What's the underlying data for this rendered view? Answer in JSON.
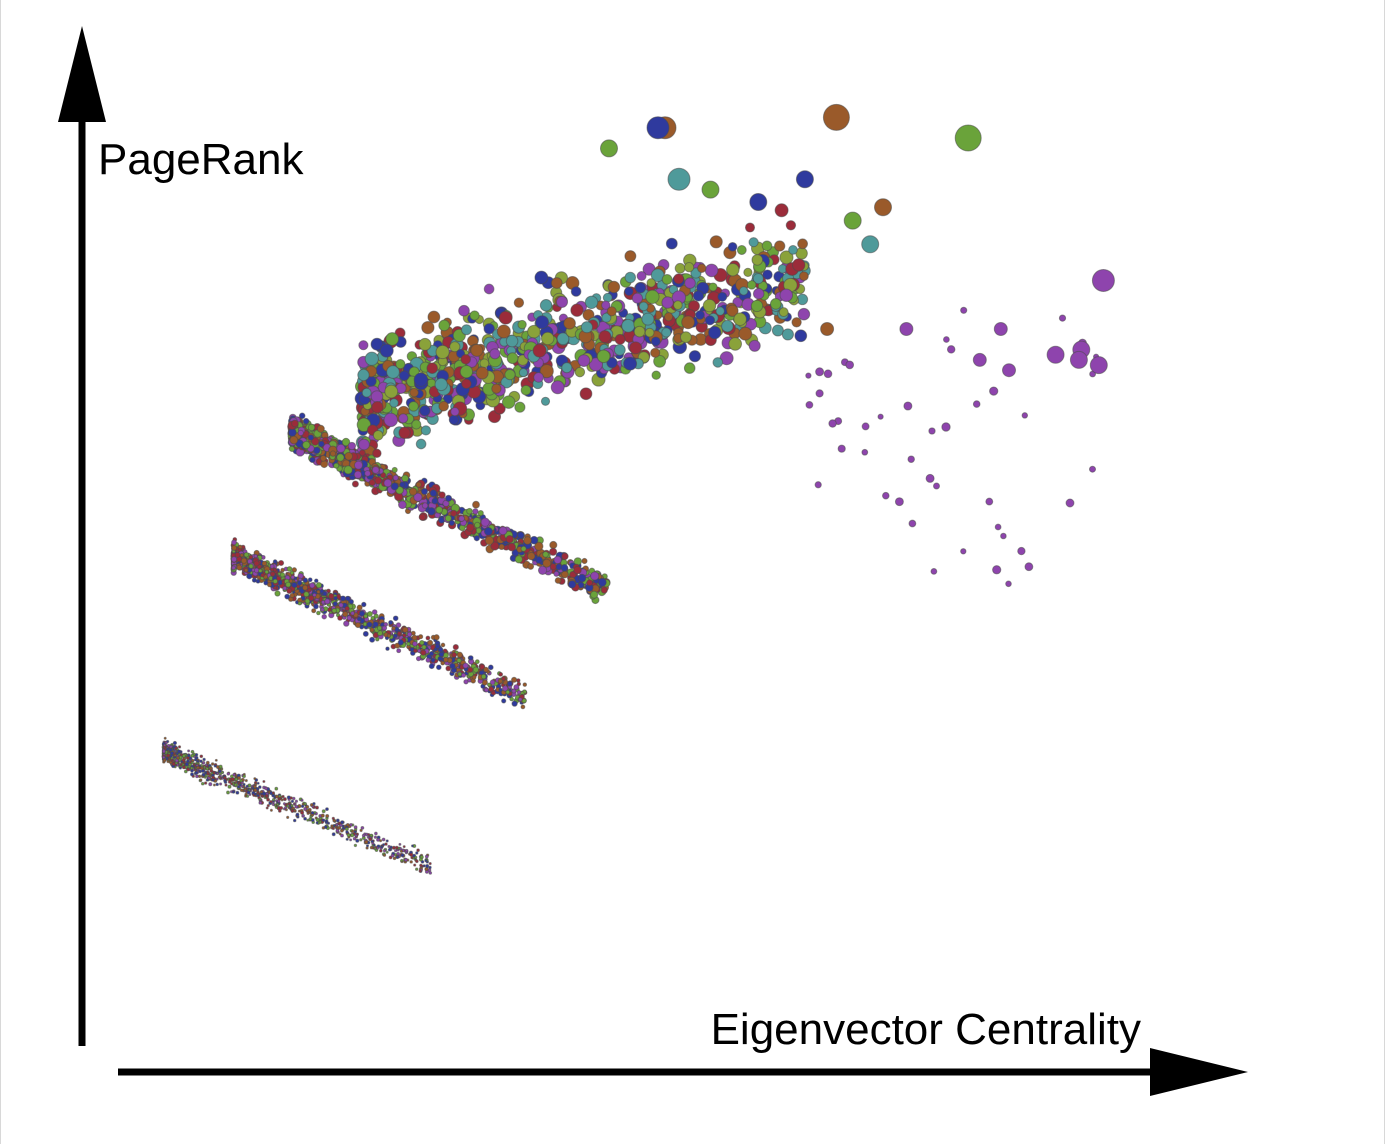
{
  "chart_data": {
    "type": "scatter",
    "title": "",
    "xlabel": "Eigenvector Centrality",
    "ylabel": "PageRank",
    "xlim": [
      0,
      1
    ],
    "ylim": [
      0,
      1
    ],
    "grid": false,
    "legend": "none",
    "axis_ticks": "none",
    "colors": {
      "purple": "#8e44ad",
      "blue": "#2f3a9e",
      "red": "#9b2c3a",
      "green": "#6aa33a",
      "teal": "#4f9a9a",
      "brown": "#9a5a2a",
      "olive": "#8aa23a"
    },
    "clusters": [
      {
        "shape": "cloud",
        "size": "large",
        "count": 900,
        "x_range": [
          0.24,
          0.62
        ],
        "y_range": [
          0.55,
          0.82
        ],
        "colors": [
          "blue",
          "red",
          "green",
          "teal",
          "brown",
          "purple",
          "olive"
        ]
      },
      {
        "shape": "band",
        "size": "medium",
        "count": 1100,
        "x_range": [
          0.18,
          0.45
        ],
        "y_range": [
          0.44,
          0.62
        ],
        "colors": [
          "red",
          "green",
          "blue",
          "purple",
          "brown"
        ]
      },
      {
        "shape": "band",
        "size": "small",
        "count": 1200,
        "x_range": [
          0.13,
          0.38
        ],
        "y_range": [
          0.34,
          0.5
        ],
        "colors": [
          "red",
          "green",
          "purple",
          "blue",
          "brown"
        ]
      },
      {
        "shape": "band",
        "size": "tiny",
        "count": 900,
        "x_range": [
          0.07,
          0.3
        ],
        "y_range": [
          0.18,
          0.31
        ],
        "colors": [
          "red",
          "blue",
          "green",
          "purple",
          "brown"
        ]
      },
      {
        "shape": "scatter",
        "size": "medium",
        "count": 45,
        "x_range": [
          0.62,
          0.88
        ],
        "y_range": [
          0.47,
          0.75
        ],
        "colors": [
          "purple"
        ]
      }
    ],
    "highlight_points": [
      {
        "x": 0.5,
        "y": 0.915,
        "size": "xl",
        "color": "brown"
      },
      {
        "x": 0.494,
        "y": 0.915,
        "size": "xl",
        "color": "blue"
      },
      {
        "x": 0.647,
        "y": 0.925,
        "size": "xxl",
        "color": "brown"
      },
      {
        "x": 0.76,
        "y": 0.905,
        "size": "xxl",
        "color": "green"
      },
      {
        "x": 0.452,
        "y": 0.895,
        "size": "l",
        "color": "green"
      },
      {
        "x": 0.512,
        "y": 0.865,
        "size": "xl",
        "color": "teal"
      },
      {
        "x": 0.539,
        "y": 0.855,
        "size": "l",
        "color": "green"
      },
      {
        "x": 0.62,
        "y": 0.865,
        "size": "l",
        "color": "blue"
      },
      {
        "x": 0.58,
        "y": 0.843,
        "size": "l",
        "color": "blue"
      },
      {
        "x": 0.6,
        "y": 0.835,
        "size": "m",
        "color": "red"
      },
      {
        "x": 0.687,
        "y": 0.838,
        "size": "l",
        "color": "brown"
      },
      {
        "x": 0.661,
        "y": 0.825,
        "size": "l",
        "color": "green"
      },
      {
        "x": 0.676,
        "y": 0.802,
        "size": "l",
        "color": "teal"
      },
      {
        "x": 0.876,
        "y": 0.767,
        "size": "xl",
        "color": "purple"
      },
      {
        "x": 0.857,
        "y": 0.7,
        "size": "l",
        "color": "purple"
      },
      {
        "x": 0.872,
        "y": 0.685,
        "size": "l",
        "color": "purple"
      },
      {
        "x": 0.855,
        "y": 0.69,
        "size": "l",
        "color": "purple"
      },
      {
        "x": 0.835,
        "y": 0.695,
        "size": "l",
        "color": "purple"
      },
      {
        "x": 0.788,
        "y": 0.72,
        "size": "m",
        "color": "purple"
      },
      {
        "x": 0.707,
        "y": 0.72,
        "size": "m",
        "color": "purple"
      },
      {
        "x": 0.77,
        "y": 0.69,
        "size": "m",
        "color": "purple"
      },
      {
        "x": 0.795,
        "y": 0.68,
        "size": "m",
        "color": "purple"
      },
      {
        "x": 0.639,
        "y": 0.72,
        "size": "m",
        "color": "brown"
      }
    ]
  }
}
